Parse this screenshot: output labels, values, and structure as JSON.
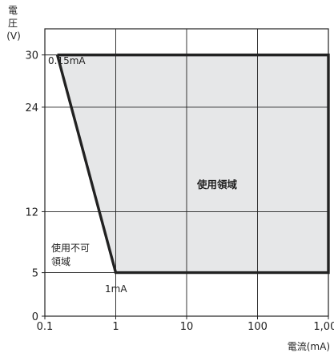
{
  "chart_data": {
    "type": "area",
    "title": "",
    "ylabel_chars": [
      "電",
      "圧",
      "(V)"
    ],
    "xlabel": "電流(mA)",
    "x_scale": "log",
    "xlim": [
      0.1,
      1000
    ],
    "ylim": [
      0,
      33
    ],
    "x_ticks": [
      0.1,
      1,
      10,
      100,
      1000
    ],
    "x_tick_labels": [
      "0.1",
      "1",
      "10",
      "100",
      "1,000"
    ],
    "y_ticks": [
      0,
      5,
      12,
      24,
      30
    ],
    "y_tick_labels": [
      "0",
      "5",
      "12",
      "24",
      "30"
    ],
    "grid": true,
    "region": {
      "boundary": [
        {
          "x": 0.15,
          "y": 30
        },
        {
          "x": 1000,
          "y": 30
        },
        {
          "x": 1000,
          "y": 5
        },
        {
          "x": 1,
          "y": 5
        }
      ],
      "fill": "#e6e7e8",
      "line": "#222222"
    },
    "annotations": {
      "point_label_top": "0.15mA",
      "point_label_bottom": "1mA",
      "usable_region": "使用領域",
      "unusable_line1": "使用不可",
      "unusable_line2": "領域"
    }
  }
}
